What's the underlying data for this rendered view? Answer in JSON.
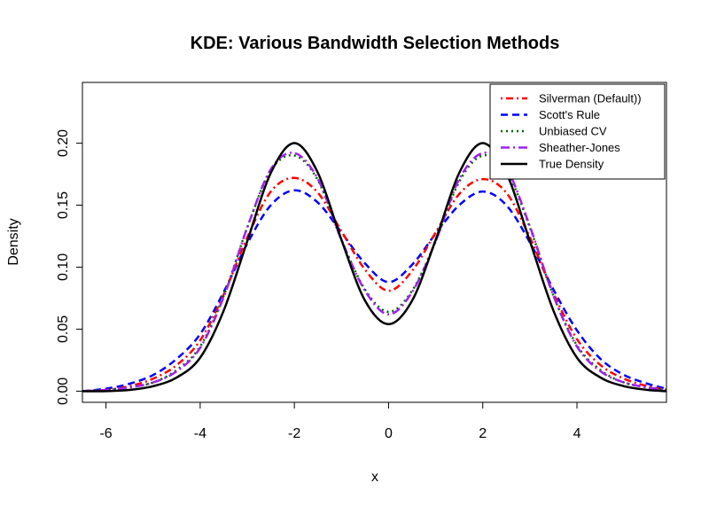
{
  "chart_data": {
    "type": "line",
    "title": "KDE: Various Bandwidth Selection Methods",
    "xlabel": "x",
    "ylabel": "Density",
    "xlim": [
      -6.5,
      5.9
    ],
    "ylim": [
      -0.009,
      0.249
    ],
    "xticks": [
      -6,
      -4,
      -2,
      0,
      2,
      4
    ],
    "xtick_labels": [
      "-6",
      "-4",
      "-2",
      "0",
      "2",
      "4"
    ],
    "yticks": [
      0.0,
      0.05,
      0.1,
      0.15,
      0.2
    ],
    "ytick_labels": [
      "0.00",
      "0.05",
      "0.10",
      "0.15",
      "0.20"
    ],
    "legend_position": "top-right",
    "x": [
      -6.5,
      -6.0,
      -5.5,
      -5.0,
      -4.5,
      -4.0,
      -3.5,
      -3.0,
      -2.5,
      -2.0,
      -1.5,
      -1.0,
      -0.5,
      0.0,
      0.5,
      1.0,
      1.5,
      2.0,
      2.5,
      3.0,
      3.5,
      4.0,
      4.5,
      5.0,
      5.5,
      5.9
    ],
    "series": [
      {
        "name": "Silverman (Default))",
        "color": "#ff0000",
        "dash": "dotdash",
        "values": [
          0.0,
          0.001,
          0.004,
          0.01,
          0.021,
          0.041,
          0.078,
          0.124,
          0.161,
          0.172,
          0.16,
          0.129,
          0.098,
          0.081,
          0.097,
          0.128,
          0.159,
          0.171,
          0.16,
          0.124,
          0.079,
          0.042,
          0.021,
          0.01,
          0.004,
          0.001
        ]
      },
      {
        "name": "Scott's Rule",
        "color": "#0000ff",
        "dash": "dashed",
        "values": [
          0.0,
          0.002,
          0.006,
          0.013,
          0.026,
          0.046,
          0.08,
          0.119,
          0.15,
          0.162,
          0.152,
          0.128,
          0.103,
          0.088,
          0.102,
          0.127,
          0.15,
          0.161,
          0.15,
          0.12,
          0.082,
          0.049,
          0.026,
          0.013,
          0.006,
          0.002
        ]
      },
      {
        "name": "Unbiased CV",
        "color": "#006400",
        "dash": "dotted",
        "values": [
          0.0,
          0.001,
          0.003,
          0.007,
          0.017,
          0.036,
          0.077,
          0.132,
          0.178,
          0.19,
          0.17,
          0.122,
          0.082,
          0.064,
          0.081,
          0.121,
          0.169,
          0.19,
          0.178,
          0.132,
          0.077,
          0.037,
          0.017,
          0.007,
          0.003,
          0.001
        ]
      },
      {
        "name": "Sheather-Jones",
        "color": "#a020f0",
        "dash": "longdash-dot",
        "values": [
          0.0,
          0.001,
          0.003,
          0.007,
          0.016,
          0.035,
          0.076,
          0.132,
          0.179,
          0.192,
          0.171,
          0.122,
          0.081,
          0.062,
          0.08,
          0.121,
          0.171,
          0.192,
          0.18,
          0.133,
          0.077,
          0.036,
          0.016,
          0.007,
          0.003,
          0.001
        ]
      },
      {
        "name": "True Density",
        "color": "#000000",
        "dash": "solid",
        "values": [
          0.0,
          0.0,
          0.001,
          0.004,
          0.011,
          0.027,
          0.065,
          0.121,
          0.176,
          0.2,
          0.176,
          0.122,
          0.073,
          0.054,
          0.073,
          0.122,
          0.176,
          0.2,
          0.176,
          0.121,
          0.065,
          0.027,
          0.011,
          0.004,
          0.001,
          0.0
        ]
      }
    ]
  }
}
